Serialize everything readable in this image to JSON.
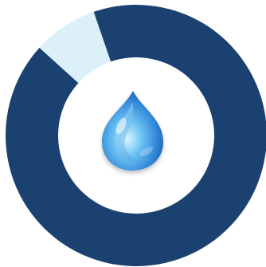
{
  "chart_data": {
    "type": "pie",
    "variant": "donut",
    "categories": [
      "",
      ""
    ],
    "values": [
      0.92,
      0.08
    ],
    "colors": [
      "#1a4170",
      "#dcf0fa"
    ],
    "center_icon": "water-drop-icon",
    "title": "",
    "legend": "none"
  },
  "colors": {
    "background": "#ffffff",
    "primary": "#1a4170",
    "secondary": "#dcf0fa"
  }
}
